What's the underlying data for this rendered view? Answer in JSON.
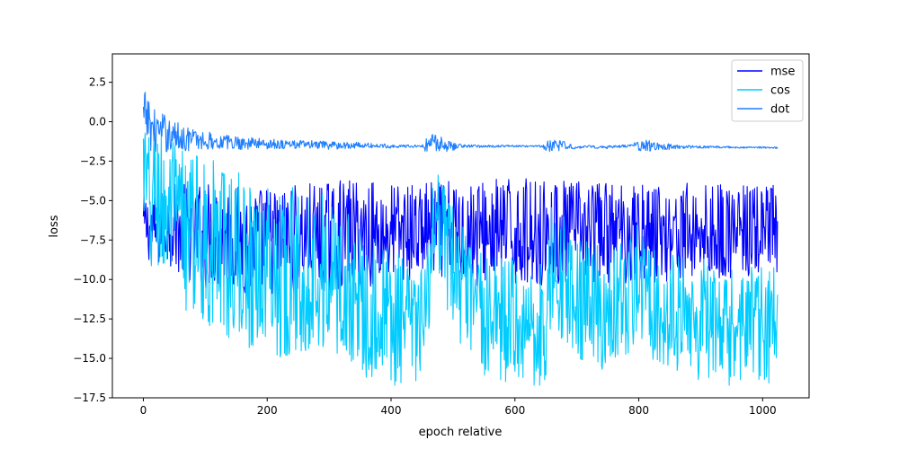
{
  "chart_data": {
    "type": "line",
    "xlabel": "epoch relative",
    "ylabel": "loss",
    "xlim": [
      -50,
      1075
    ],
    "ylim": [
      -17.5,
      4.3
    ],
    "xticks": [
      0,
      200,
      400,
      600,
      800,
      1000
    ],
    "xtick_labels": [
      "0",
      "200",
      "400",
      "600",
      "800",
      "1000"
    ],
    "yticks": [
      2.5,
      0.0,
      -2.5,
      -5.0,
      -7.5,
      -10.0,
      -12.5,
      -15.0,
      -17.5
    ],
    "ytick_labels": [
      "2.5",
      "0.0",
      "−2.5",
      "−5.0",
      "−7.5",
      "−10.0",
      "−12.5",
      "−15.0",
      "−17.5"
    ],
    "grid": false,
    "legend_position": "top-right",
    "series": [
      {
        "name": "mse",
        "color": "#0000ff",
        "points": [
          [
            0,
            -6.5
          ],
          [
            20,
            -7.0
          ],
          [
            40,
            -6.5
          ],
          [
            60,
            -6.8
          ],
          [
            80,
            -7.0
          ],
          [
            100,
            -7.2
          ],
          [
            120,
            -7.2
          ],
          [
            140,
            -7.4
          ],
          [
            160,
            -7.5
          ],
          [
            180,
            -7.6
          ],
          [
            200,
            -7.5
          ],
          [
            220,
            -7.5
          ],
          [
            240,
            -7.4
          ],
          [
            260,
            -7.4
          ],
          [
            280,
            -7.3
          ],
          [
            300,
            -7.3
          ],
          [
            320,
            -7.2
          ],
          [
            340,
            -7.1
          ],
          [
            360,
            -7.1
          ],
          [
            380,
            -7.0
          ],
          [
            400,
            -7.0
          ],
          [
            420,
            -7.0
          ],
          [
            440,
            -7.0
          ],
          [
            460,
            -6.8
          ],
          [
            480,
            -6.9
          ],
          [
            500,
            -7.0
          ],
          [
            520,
            -7.0
          ],
          [
            540,
            -7.0
          ],
          [
            560,
            -7.0
          ],
          [
            580,
            -7.0
          ],
          [
            600,
            -7.0
          ],
          [
            620,
            -7.0
          ],
          [
            640,
            -7.0
          ],
          [
            660,
            -7.0
          ],
          [
            680,
            -7.0
          ],
          [
            700,
            -7.0
          ],
          [
            720,
            -7.0
          ],
          [
            740,
            -7.0
          ],
          [
            760,
            -7.0
          ],
          [
            780,
            -7.0
          ],
          [
            800,
            -7.0
          ],
          [
            820,
            -7.0
          ],
          [
            840,
            -7.0
          ],
          [
            860,
            -7.0
          ],
          [
            880,
            -7.0
          ],
          [
            900,
            -7.0
          ],
          [
            920,
            -7.0
          ],
          [
            940,
            -7.0
          ],
          [
            960,
            -7.0
          ],
          [
            980,
            -7.0
          ],
          [
            1000,
            -7.0
          ],
          [
            1024,
            -7.0
          ]
        ],
        "spread": [
          [
            0,
            2.0
          ],
          [
            100,
            3.5
          ],
          [
            200,
            3.5
          ],
          [
            330,
            3.5
          ],
          [
            340,
            3.5
          ],
          [
            460,
            3.0
          ],
          [
            520,
            3.5
          ],
          [
            1024,
            3.0
          ]
        ]
      },
      {
        "name": "cos",
        "color": "#00ccff",
        "points": [
          [
            0,
            -3.0
          ],
          [
            10,
            -6.0
          ],
          [
            20,
            -4.5
          ],
          [
            40,
            -6.0
          ],
          [
            60,
            -6.5
          ],
          [
            80,
            -7.0
          ],
          [
            100,
            -7.5
          ],
          [
            120,
            -8.0
          ],
          [
            140,
            -8.5
          ],
          [
            160,
            -8.8
          ],
          [
            180,
            -9.0
          ],
          [
            200,
            -9.2
          ],
          [
            220,
            -9.5
          ],
          [
            240,
            -9.5
          ],
          [
            260,
            -9.5
          ],
          [
            280,
            -9.3
          ],
          [
            300,
            -10.0
          ],
          [
            320,
            -10.5
          ],
          [
            340,
            -11.0
          ],
          [
            360,
            -11.5
          ],
          [
            380,
            -12.0
          ],
          [
            400,
            -12.5
          ],
          [
            420,
            -12.8
          ],
          [
            440,
            -13.0
          ],
          [
            455,
            -13.0
          ],
          [
            465,
            -7.0
          ],
          [
            480,
            -7.5
          ],
          [
            500,
            -9.0
          ],
          [
            520,
            -11.0
          ],
          [
            540,
            -12.0
          ],
          [
            560,
            -12.5
          ],
          [
            580,
            -12.5
          ],
          [
            600,
            -12.5
          ],
          [
            620,
            -12.8
          ],
          [
            640,
            -13.0
          ],
          [
            650,
            -13.0
          ],
          [
            660,
            -9.0
          ],
          [
            680,
            -10.0
          ],
          [
            700,
            -11.0
          ],
          [
            720,
            -11.5
          ],
          [
            740,
            -12.0
          ],
          [
            760,
            -12.0
          ],
          [
            780,
            -11.5
          ],
          [
            800,
            -10.0
          ],
          [
            820,
            -11.0
          ],
          [
            840,
            -12.0
          ],
          [
            860,
            -12.5
          ],
          [
            880,
            -12.5
          ],
          [
            900,
            -12.5
          ],
          [
            920,
            -13.0
          ],
          [
            940,
            -13.5
          ],
          [
            960,
            -13.0
          ],
          [
            980,
            -13.0
          ],
          [
            1000,
            -13.0
          ],
          [
            1024,
            -13.0
          ]
        ],
        "spread": [
          [
            0,
            5.0
          ],
          [
            100,
            5.5
          ],
          [
            200,
            5.5
          ],
          [
            330,
            5.0
          ],
          [
            450,
            4.0
          ],
          [
            465,
            4.0
          ],
          [
            550,
            4.0
          ],
          [
            1024,
            4.0
          ]
        ]
      },
      {
        "name": "dot",
        "color": "#1f7fff",
        "points": [
          [
            0,
            0.0
          ],
          [
            5,
            0.5
          ],
          [
            10,
            -0.2
          ],
          [
            20,
            -0.6
          ],
          [
            40,
            -0.8
          ],
          [
            60,
            -1.0
          ],
          [
            80,
            -1.1
          ],
          [
            100,
            -1.2
          ],
          [
            140,
            -1.3
          ],
          [
            200,
            -1.4
          ],
          [
            260,
            -1.45
          ],
          [
            300,
            -1.5
          ],
          [
            350,
            -1.5
          ],
          [
            400,
            -1.55
          ],
          [
            455,
            -1.55
          ],
          [
            460,
            -1.4
          ],
          [
            470,
            -1.3
          ],
          [
            490,
            -1.5
          ],
          [
            520,
            -1.55
          ],
          [
            600,
            -1.55
          ],
          [
            650,
            -1.55
          ],
          [
            660,
            -1.5
          ],
          [
            700,
            -1.6
          ],
          [
            760,
            -1.6
          ],
          [
            800,
            -1.5
          ],
          [
            820,
            -1.55
          ],
          [
            860,
            -1.6
          ],
          [
            900,
            -1.6
          ],
          [
            950,
            -1.62
          ],
          [
            1000,
            -1.63
          ],
          [
            1024,
            -1.65
          ]
        ],
        "spread": [
          [
            0,
            1.8
          ],
          [
            20,
            1.4
          ],
          [
            60,
            0.9
          ],
          [
            120,
            0.5
          ],
          [
            200,
            0.35
          ],
          [
            300,
            0.25
          ],
          [
            400,
            0.12
          ],
          [
            450,
            0.08
          ],
          [
            460,
            0.6
          ],
          [
            490,
            0.4
          ],
          [
            520,
            0.1
          ],
          [
            640,
            0.05
          ],
          [
            655,
            0.4
          ],
          [
            680,
            0.3
          ],
          [
            700,
            0.1
          ],
          [
            790,
            0.1
          ],
          [
            800,
            0.4
          ],
          [
            830,
            0.3
          ],
          [
            860,
            0.12
          ],
          [
            900,
            0.08
          ],
          [
            1024,
            0.05
          ]
        ]
      }
    ]
  }
}
